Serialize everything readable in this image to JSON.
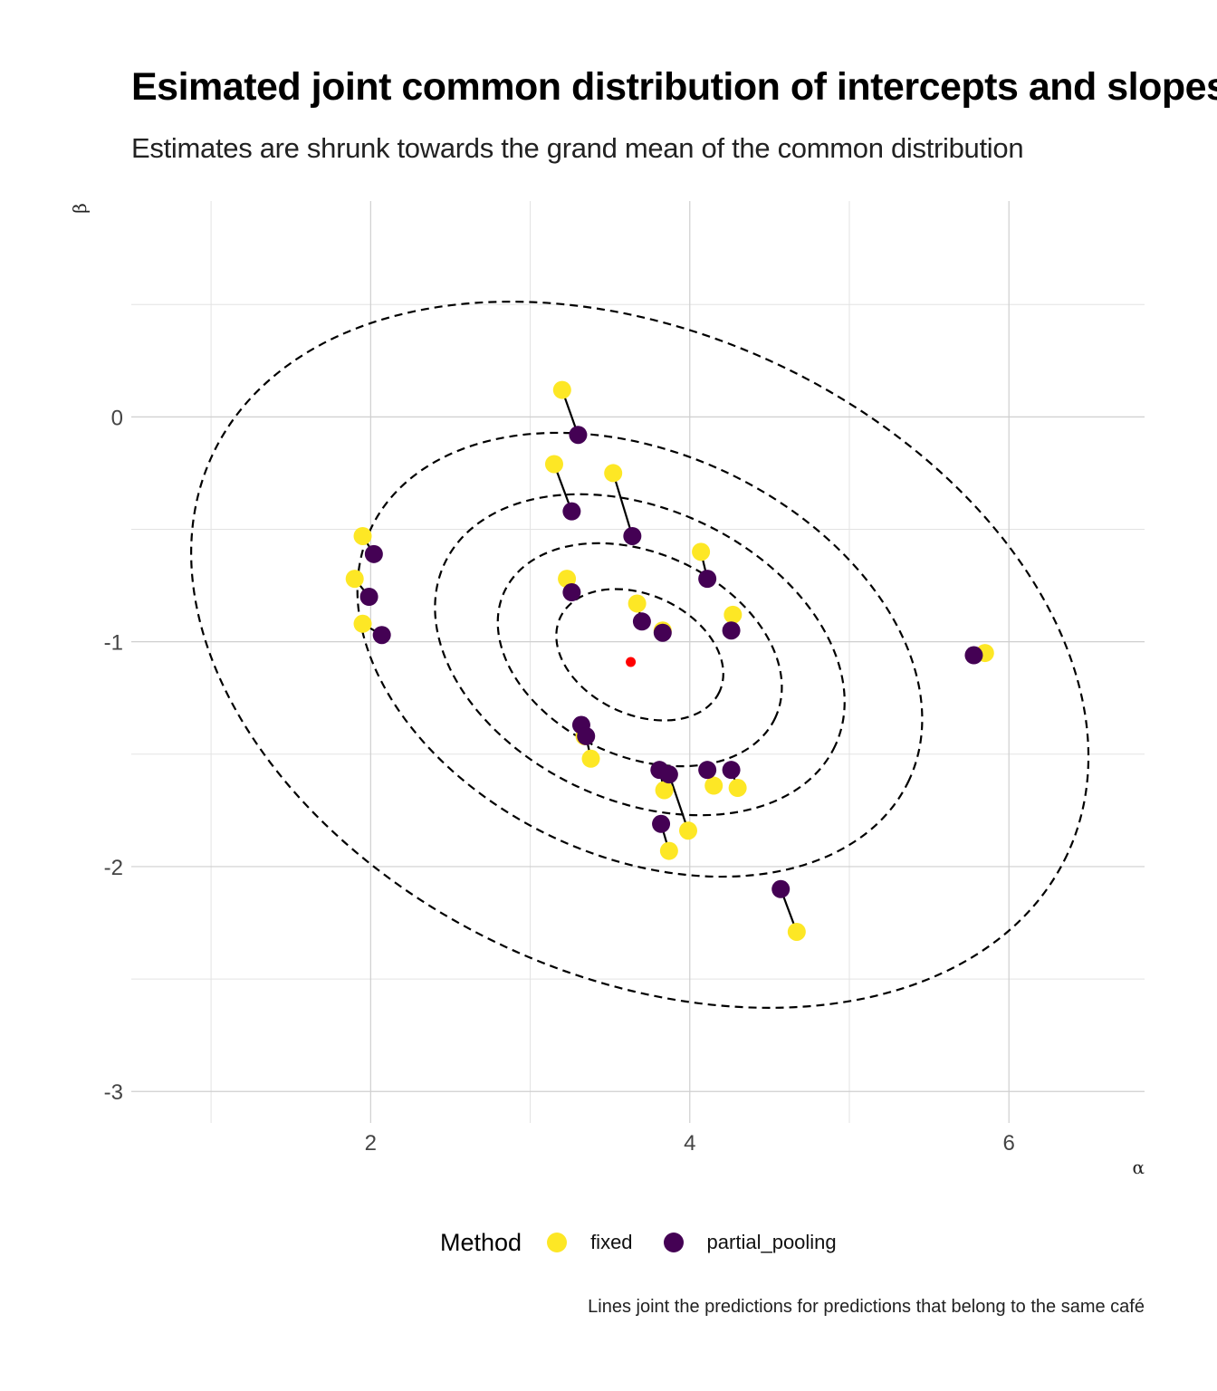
{
  "title": "Esimated joint common distribution of intercepts and slopes",
  "subtitle": "Estimates are shrunk towards the grand mean of the common distribution",
  "caption": "Lines joint the predictions for predictions that belong to the same café",
  "legend": {
    "title": "Method",
    "items": [
      {
        "label": "fixed",
        "color": "#FDE725"
      },
      {
        "label": "partial_pooling",
        "color": "#440154"
      }
    ]
  },
  "chart_data": {
    "type": "scatter",
    "xlabel": "α",
    "ylabel": "β",
    "xlim": [
      0.5,
      6.85
    ],
    "ylim": [
      -3.14,
      0.96
    ],
    "x_major_ticks": [
      2,
      4,
      6
    ],
    "x_minor_gridlines": [
      1,
      3,
      5
    ],
    "y_major_ticks": [
      0,
      -1,
      -2,
      -3
    ],
    "y_minor_gridlines": [
      0.5,
      -0.5,
      -1.5,
      -2.5
    ],
    "grid": true,
    "grand_mean": {
      "x": 3.63,
      "y": -1.09,
      "color": "#FF0000"
    },
    "contours_levels": 5,
    "contour_style": "dashed",
    "pairs": [
      {
        "fixed": [
          3.2,
          0.12
        ],
        "partial_pooling": [
          3.3,
          -0.08
        ]
      },
      {
        "fixed": [
          3.15,
          -0.21
        ],
        "partial_pooling": [
          3.26,
          -0.42
        ]
      },
      {
        "fixed": [
          3.52,
          -0.25
        ],
        "partial_pooling": [
          3.64,
          -0.53
        ]
      },
      {
        "fixed": [
          1.95,
          -0.53
        ],
        "partial_pooling": [
          2.02,
          -0.61
        ]
      },
      {
        "fixed": [
          1.9,
          -0.72
        ],
        "partial_pooling": [
          1.99,
          -0.8
        ]
      },
      {
        "fixed": [
          1.95,
          -0.92
        ],
        "partial_pooling": [
          2.07,
          -0.97
        ]
      },
      {
        "fixed": [
          3.23,
          -0.72
        ],
        "partial_pooling": [
          3.26,
          -0.78
        ]
      },
      {
        "fixed": [
          4.07,
          -0.6
        ],
        "partial_pooling": [
          4.11,
          -0.72
        ]
      },
      {
        "fixed": [
          3.67,
          -0.83
        ],
        "partial_pooling": [
          3.7,
          -0.91
        ]
      },
      {
        "fixed": [
          3.83,
          -0.95
        ],
        "partial_pooling": [
          3.83,
          -0.96
        ]
      },
      {
        "fixed": [
          4.27,
          -0.88
        ],
        "partial_pooling": [
          4.26,
          -0.95
        ]
      },
      {
        "fixed": [
          5.85,
          -1.05
        ],
        "partial_pooling": [
          5.78,
          -1.06
        ]
      },
      {
        "fixed": [
          3.34,
          -1.42
        ],
        "partial_pooling": [
          3.32,
          -1.37
        ]
      },
      {
        "fixed": [
          3.38,
          -1.52
        ],
        "partial_pooling": [
          3.35,
          -1.42
        ]
      },
      {
        "fixed": [
          3.84,
          -1.66
        ],
        "partial_pooling": [
          3.81,
          -1.57
        ]
      },
      {
        "fixed": [
          3.99,
          -1.84
        ],
        "partial_pooling": [
          3.87,
          -1.59
        ]
      },
      {
        "fixed": [
          4.15,
          -1.64
        ],
        "partial_pooling": [
          4.11,
          -1.57
        ]
      },
      {
        "fixed": [
          4.3,
          -1.65
        ],
        "partial_pooling": [
          4.26,
          -1.57
        ]
      },
      {
        "fixed": [
          3.87,
          -1.93
        ],
        "partial_pooling": [
          3.82,
          -1.81
        ]
      },
      {
        "fixed": [
          4.67,
          -2.29
        ],
        "partial_pooling": [
          4.57,
          -2.1
        ]
      }
    ]
  }
}
